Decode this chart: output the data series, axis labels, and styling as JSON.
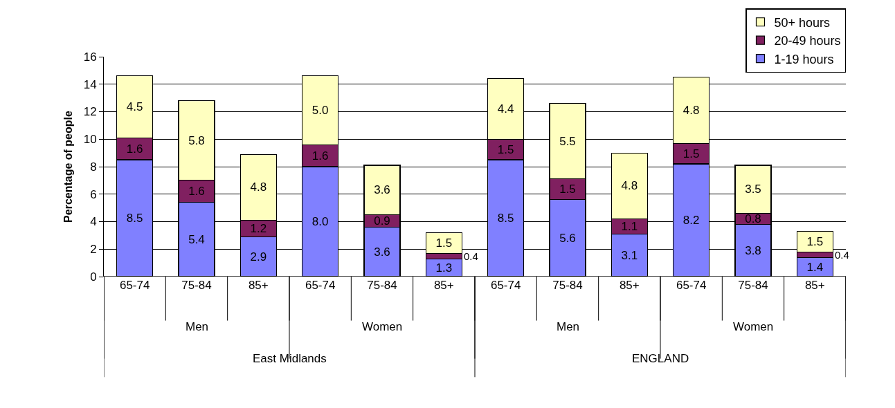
{
  "chart_data": {
    "type": "bar",
    "stacked": true,
    "ylabel": "Percentage of people",
    "categories": [
      "65-74",
      "75-84",
      "85+",
      "65-74",
      "75-84",
      "85+",
      "65-74",
      "75-84",
      "85+",
      "65-74",
      "75-84",
      "85+"
    ],
    "annotations": [
      "Men",
      "Women",
      "Men",
      "Women",
      "East Midlands",
      "ENGLAND"
    ],
    "series": [
      {
        "name": "1-19 hours",
        "color": "#8080ff",
        "values": [
          8.5,
          5.4,
          2.9,
          8.0,
          3.6,
          1.3,
          8.5,
          5.6,
          3.1,
          8.2,
          3.8,
          1.4
        ],
        "value_labels": [
          "8.5",
          "5.4",
          "2.9",
          "8.0",
          "3.6",
          "1.3",
          "8.5",
          "5.6",
          "3.1",
          "8.2",
          "3.8",
          "1.4"
        ]
      },
      {
        "name": "20-49 hours",
        "color": "#802060",
        "values": [
          1.6,
          1.6,
          1.2,
          1.6,
          0.9,
          0.4,
          1.5,
          1.5,
          1.1,
          1.5,
          0.8,
          0.4
        ],
        "value_labels": [
          "1.6",
          "1.6",
          "1.2",
          "1.6",
          "0.9",
          "0.4",
          "1.5",
          "1.5",
          "1.1",
          "1.5",
          "0.8",
          "0.4"
        ]
      },
      {
        "name": "50+ hours",
        "color": "#ffffc0",
        "values": [
          4.5,
          5.8,
          4.8,
          5.0,
          3.6,
          1.5,
          4.4,
          5.5,
          4.8,
          4.8,
          3.5,
          1.5
        ],
        "value_labels": [
          "4.5",
          "5.8",
          "4.8",
          "5.0",
          "3.6",
          "1.5",
          "4.4",
          "5.5",
          "4.8",
          "4.8",
          "3.5",
          "1.5"
        ]
      }
    ],
    "ylim": [
      0,
      16
    ],
    "yticks": [
      0,
      2,
      4,
      6,
      8,
      10,
      12,
      14,
      16
    ],
    "grid": "y",
    "legend": "top right"
  }
}
